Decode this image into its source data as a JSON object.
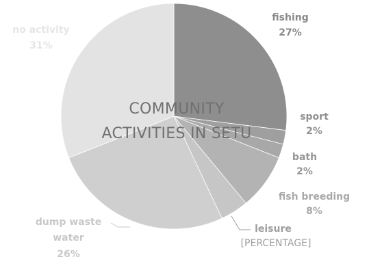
{
  "chart_data": {
    "type": "pie",
    "title_lines": [
      "COMMUNITY",
      "ACTIVITIES IN SETU"
    ],
    "slices": [
      {
        "label": "fishing",
        "value": 27,
        "display": "27%",
        "color": "#8e8e8e",
        "text_color": "#8a8a8a"
      },
      {
        "label": "sport",
        "value": 2,
        "display": "2%",
        "color": "#9f9f9f",
        "text_color": "#909090"
      },
      {
        "label": "bath",
        "value": 2,
        "display": "2%",
        "color": "#a8a8a8",
        "text_color": "#969696"
      },
      {
        "label": "fish breeding",
        "value": 8,
        "display": "8%",
        "color": "#b3b3b3",
        "text_color": "#a9a9a9"
      },
      {
        "label": "leisure",
        "value": 4,
        "display": "[PERCENTAGE]",
        "color": "#c6c6c6",
        "text_color": "#9e9e9e"
      },
      {
        "label": "dump waste water",
        "value": 26,
        "display": "26%",
        "color": "#cfcfcf",
        "text_color": "#c8c8c8"
      },
      {
        "label": "no activity",
        "value": 31,
        "display": "31%",
        "color": "#e3e3e3",
        "text_color": "#e6e6e6"
      }
    ]
  }
}
